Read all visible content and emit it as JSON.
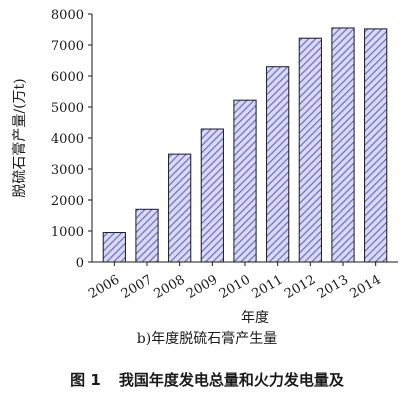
{
  "chart_data": {
    "type": "bar",
    "categories": [
      "2006",
      "2007",
      "2008",
      "2009",
      "2010",
      "2011",
      "2012",
      "2013",
      "2014"
    ],
    "values": [
      950,
      1700,
      3480,
      4290,
      5220,
      6300,
      7220,
      7550,
      7520
    ],
    "ylabel": "脱硫石膏产量/(万t)",
    "xlabel": "年度",
    "ylim": [
      0,
      8000
    ],
    "yticks": [
      0,
      1000,
      2000,
      3000,
      4000,
      5000,
      6000,
      7000,
      8000
    ],
    "bar_color": "#6b6bc8",
    "bar_fill_pattern": "diagonal-hatch",
    "grid": false
  },
  "captions": {
    "subcaption": "b)年度脱硫石膏产生量",
    "figure_number": "图 1",
    "figure_title": "我国年度发电总量和火力发电量及"
  }
}
